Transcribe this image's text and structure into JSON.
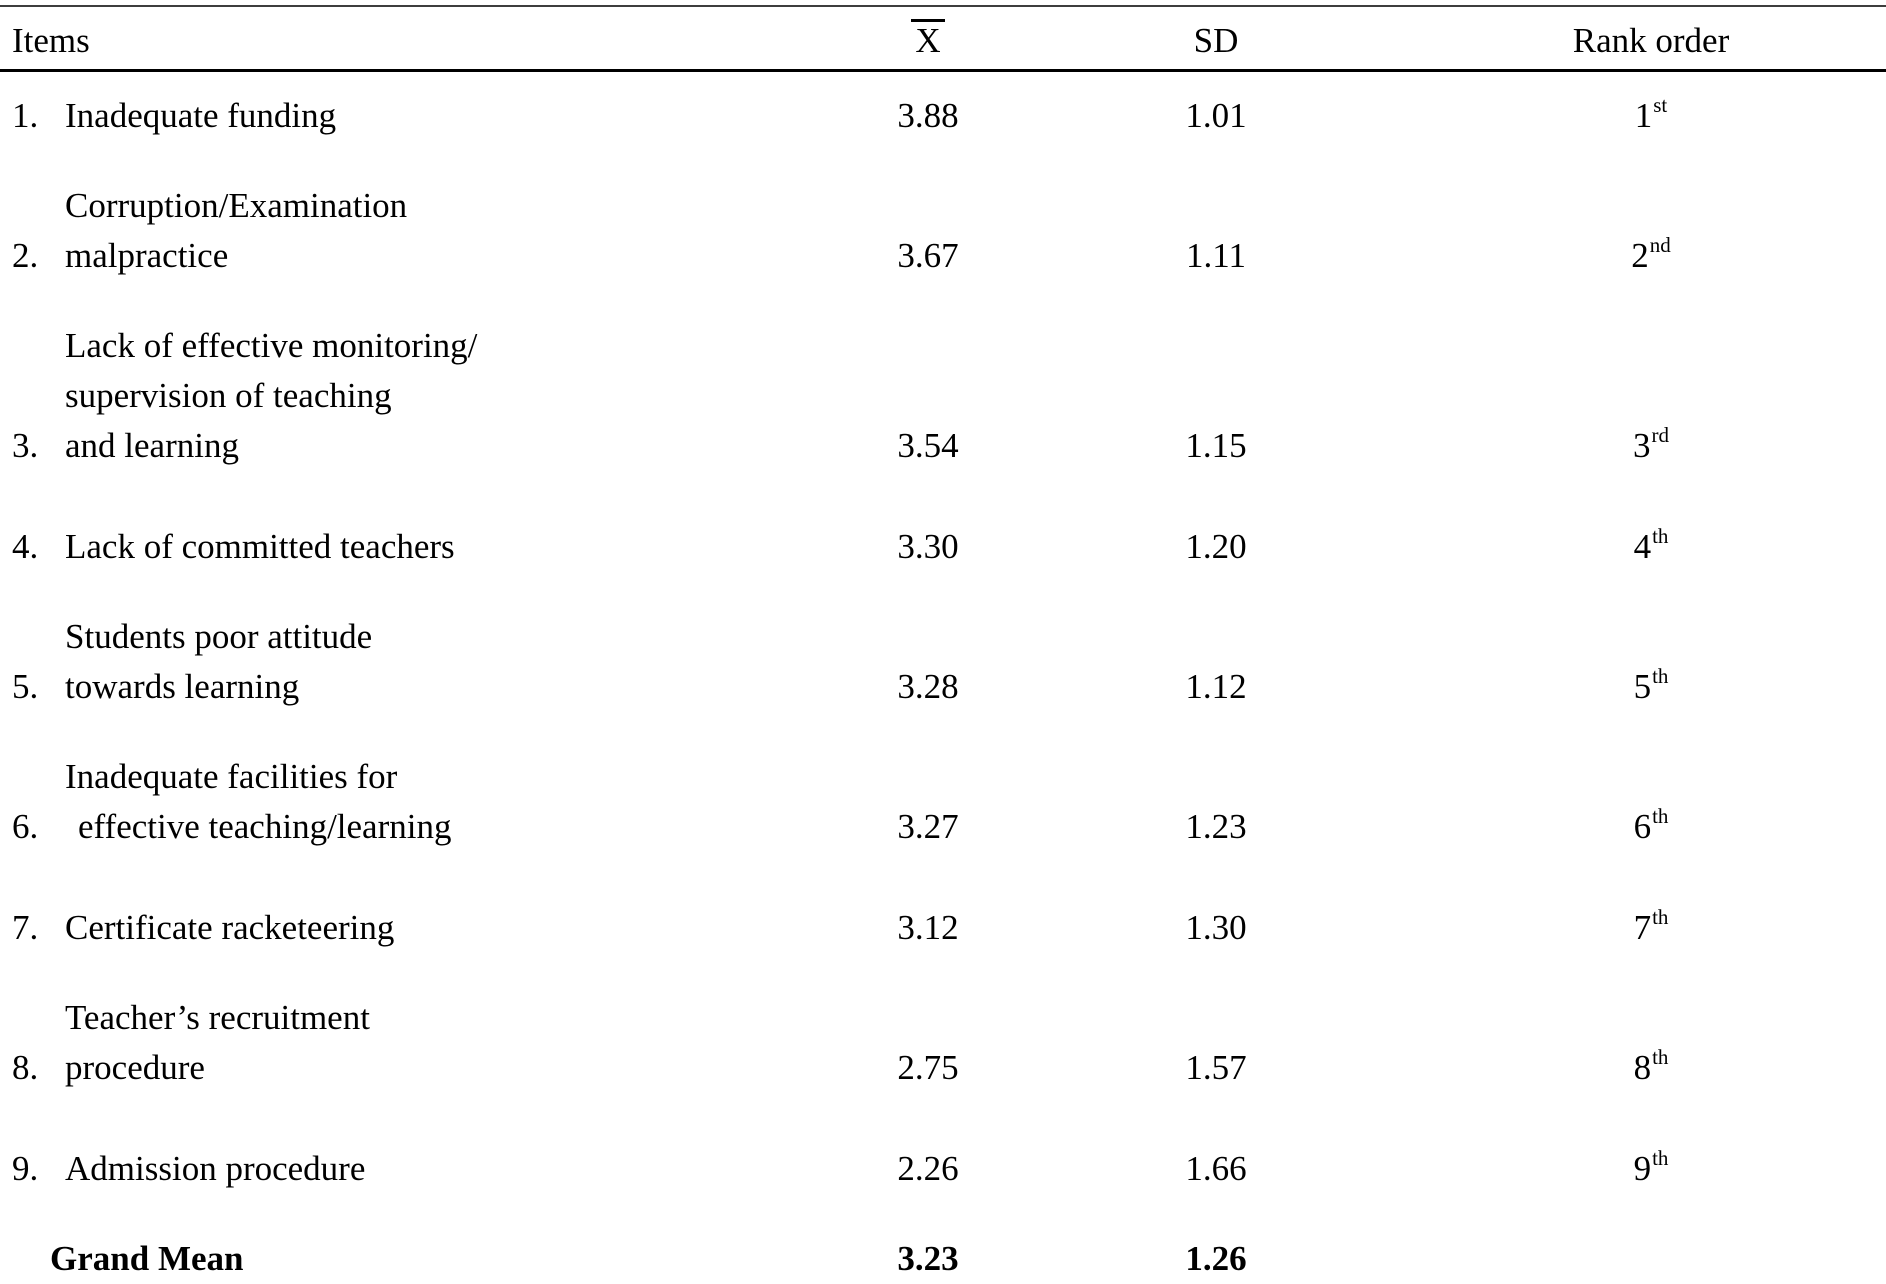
{
  "table": {
    "headers": {
      "items": "Items",
      "mean": "X",
      "sd": "SD",
      "rank": "Rank order"
    },
    "rows": [
      {
        "num": "1.",
        "lines": [
          "Inadequate funding"
        ],
        "mean": "3.88",
        "sd": "1.01",
        "rank_num": "1",
        "rank_suffix": "st"
      },
      {
        "num": "2.",
        "lines": [
          "Corruption/Examination",
          "malpractice"
        ],
        "mean": "3.67",
        "sd": "1.11",
        "rank_num": "2",
        "rank_suffix": "nd"
      },
      {
        "num": "3.",
        "lines": [
          "Lack of effective monitoring/",
          "supervision of teaching",
          "and learning"
        ],
        "mean": "3.54",
        "sd": "1.15",
        "rank_num": "3",
        "rank_suffix": "rd"
      },
      {
        "num": "4.",
        "lines": [
          "Lack of committed teachers"
        ],
        "mean": "3.30",
        "sd": "1.20",
        "rank_num": "4",
        "rank_suffix": "th"
      },
      {
        "num": "5.",
        "lines": [
          "Students poor attitude",
          "towards learning"
        ],
        "mean": "3.28",
        "sd": "1.12",
        "rank_num": "5",
        "rank_suffix": "th"
      },
      {
        "num": "6.",
        "lines": [
          "Inadequate facilities for",
          "effective teaching/learning"
        ],
        "mean": "3.27",
        "sd": "1.23",
        "rank_num": "6",
        "rank_suffix": "th"
      },
      {
        "num": "7.",
        "lines": [
          "Certificate racketeering"
        ],
        "mean": "3.12",
        "sd": "1.30",
        "rank_num": "7",
        "rank_suffix": "th"
      },
      {
        "num": "8.",
        "lines": [
          "Teacher’s recruitment",
          "procedure"
        ],
        "mean": "2.75",
        "sd": "1.57",
        "rank_num": "8",
        "rank_suffix": "th"
      },
      {
        "num": "9.",
        "lines": [
          "Admission procedure"
        ],
        "mean": "2.26",
        "sd": "1.66",
        "rank_num": "9",
        "rank_suffix": "th"
      }
    ],
    "footer": {
      "label": "Grand Mean",
      "mean": "3.23",
      "sd": "1.26"
    }
  }
}
